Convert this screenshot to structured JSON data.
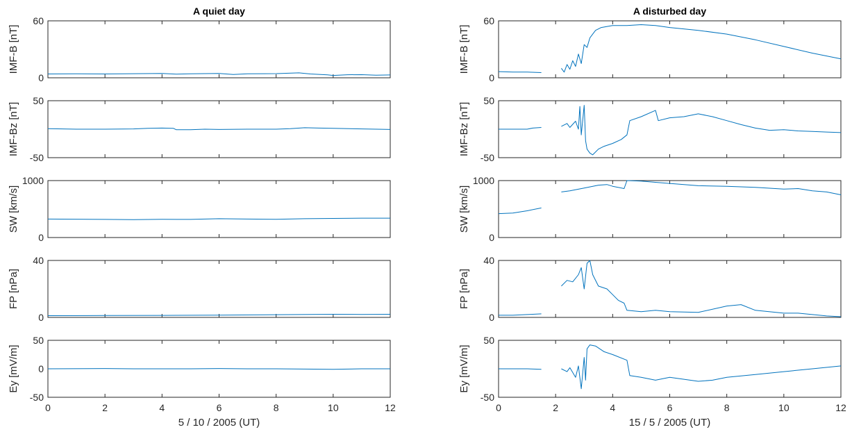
{
  "colors": {
    "line": "#0072bd",
    "axis": "#262626"
  },
  "chart_data": [
    {
      "type": "line",
      "title": "A quiet day",
      "xlabel": "5 / 10 / 2005 (UT)",
      "xlim": [
        0,
        12
      ],
      "xticks": [
        0,
        2,
        4,
        6,
        8,
        10,
        12
      ],
      "panels": [
        {
          "ylabel": "IMF-B [nT]",
          "ylim": [
            0,
            60
          ],
          "yticks": [
            0,
            60
          ],
          "segments": [
            [
              [
                0,
                4
              ],
              [
                1,
                4.2
              ],
              [
                2,
                4
              ],
              [
                3,
                4.3
              ],
              [
                4,
                4.6
              ],
              [
                4.5,
                3.8
              ],
              [
                5,
                4.2
              ],
              [
                6,
                4.5
              ],
              [
                6.5,
                3.5
              ],
              [
                7,
                4.2
              ],
              [
                8,
                4.4
              ],
              [
                8.8,
                5.2
              ],
              [
                9.2,
                4
              ],
              [
                9.8,
                3.1
              ],
              [
                10,
                2.5
              ],
              [
                10.5,
                3.2
              ],
              [
                11,
                3.3
              ],
              [
                11.5,
                2.8
              ],
              [
                12,
                3
              ]
            ]
          ]
        },
        {
          "ylabel": "IMF-Bz [nT]",
          "ylim": [
            -50,
            50
          ],
          "yticks": [
            -50,
            50
          ],
          "segments": [
            [
              [
                0,
                1
              ],
              [
                0.5,
                0.5
              ],
              [
                1,
                0
              ],
              [
                2,
                0
              ],
              [
                3,
                0.5
              ],
              [
                3.5,
                1.5
              ],
              [
                4,
                2
              ],
              [
                4.4,
                1.5
              ],
              [
                4.5,
                -1
              ],
              [
                5,
                -1
              ],
              [
                5.5,
                0
              ],
              [
                6,
                -0.5
              ],
              [
                7,
                0
              ],
              [
                8,
                0
              ],
              [
                8.5,
                1
              ],
              [
                9,
                2.5
              ],
              [
                9.5,
                2
              ],
              [
                10,
                1.5
              ],
              [
                11,
                0.5
              ],
              [
                12,
                -0.5
              ]
            ]
          ]
        },
        {
          "ylabel": "SW [km/s]",
          "ylim": [
            0,
            1000
          ],
          "yticks": [
            0,
            1000
          ],
          "segments": [
            [
              [
                0,
                325
              ],
              [
                2,
                318
              ],
              [
                3,
                315
              ],
              [
                4,
                320
              ],
              [
                5,
                318
              ],
              [
                6,
                330
              ],
              [
                7,
                325
              ],
              [
                8,
                320
              ],
              [
                9,
                330
              ],
              [
                10,
                335
              ],
              [
                11,
                340
              ],
              [
                12,
                340
              ]
            ]
          ]
        },
        {
          "ylabel": "FP [nPa]",
          "ylim": [
            0,
            40
          ],
          "yticks": [
            0,
            40
          ],
          "segments": [
            [
              [
                0,
                1.2
              ],
              [
                2,
                1.3
              ],
              [
                4,
                1.4
              ],
              [
                6,
                1.6
              ],
              [
                8,
                1.9
              ],
              [
                10,
                2.2
              ],
              [
                11,
                2.1
              ],
              [
                12,
                2.2
              ]
            ]
          ]
        },
        {
          "ylabel": "Ey [mV/m]",
          "ylim": [
            -50,
            50
          ],
          "yticks": [
            -50,
            0,
            50
          ],
          "segments": [
            [
              [
                0,
                0
              ],
              [
                2,
                0.5
              ],
              [
                3,
                0
              ],
              [
                5,
                0
              ],
              [
                6,
                0.5
              ],
              [
                7,
                0
              ],
              [
                8,
                0
              ],
              [
                9,
                -0.5
              ],
              [
                10,
                -1
              ],
              [
                11,
                0
              ],
              [
                12,
                0
              ]
            ]
          ]
        }
      ]
    },
    {
      "type": "line",
      "title": "A disturbed day",
      "xlabel": "15 /  5 / 2005 (UT)",
      "xlim": [
        0,
        12
      ],
      "xticks": [
        0,
        2,
        4,
        6,
        8,
        10,
        12
      ],
      "panels": [
        {
          "ylabel": "IMF-B [nT]",
          "ylim": [
            0,
            60
          ],
          "yticks": [
            0,
            60
          ],
          "segments": [
            [
              [
                0,
                6.5
              ],
              [
                0.5,
                6
              ],
              [
                1,
                6
              ],
              [
                1.5,
                5.5
              ]
            ],
            [
              [
                2.2,
                10
              ],
              [
                2.3,
                6
              ],
              [
                2.4,
                14
              ],
              [
                2.5,
                9
              ],
              [
                2.6,
                18
              ],
              [
                2.7,
                12
              ],
              [
                2.8,
                25
              ],
              [
                2.9,
                15
              ],
              [
                3,
                35
              ],
              [
                3.1,
                32
              ],
              [
                3.2,
                42
              ],
              [
                3.3,
                46
              ],
              [
                3.4,
                50
              ],
              [
                3.6,
                53
              ],
              [
                4,
                55
              ],
              [
                4.5,
                55
              ],
              [
                5,
                56
              ],
              [
                5.5,
                55
              ],
              [
                6,
                53
              ],
              [
                7,
                50
              ],
              [
                8,
                46
              ],
              [
                9,
                40
              ],
              [
                10,
                33
              ],
              [
                11,
                26
              ],
              [
                12,
                20
              ]
            ]
          ]
        },
        {
          "ylabel": "IMF-Bz [nT]",
          "ylim": [
            -50,
            50
          ],
          "yticks": [
            -50,
            50
          ],
          "segments": [
            [
              [
                0,
                0
              ],
              [
                0.5,
                0
              ],
              [
                1,
                0
              ],
              [
                1.2,
                2
              ],
              [
                1.5,
                3
              ]
            ],
            [
              [
                2.2,
                5
              ],
              [
                2.4,
                10
              ],
              [
                2.5,
                3
              ],
              [
                2.7,
                14
              ],
              [
                2.8,
                0
              ],
              [
                2.85,
                40
              ],
              [
                2.9,
                -10
              ],
              [
                3,
                42
              ],
              [
                3.05,
                -20
              ],
              [
                3.1,
                -35
              ],
              [
                3.2,
                -42
              ],
              [
                3.3,
                -45
              ],
              [
                3.5,
                -35
              ],
              [
                3.7,
                -30
              ],
              [
                4,
                -25
              ],
              [
                4.3,
                -18
              ],
              [
                4.5,
                -10
              ],
              [
                4.6,
                15
              ],
              [
                5,
                22
              ],
              [
                5.5,
                33
              ],
              [
                5.6,
                15
              ],
              [
                6,
                20
              ],
              [
                6.5,
                22
              ],
              [
                7,
                27
              ],
              [
                7.5,
                22
              ],
              [
                8,
                15
              ],
              [
                8.5,
                8
              ],
              [
                9,
                2
              ],
              [
                9.5,
                -2
              ],
              [
                10,
                -1
              ],
              [
                10.5,
                -3
              ],
              [
                11,
                -4
              ],
              [
                11.5,
                -5
              ],
              [
                12,
                -6
              ]
            ]
          ]
        },
        {
          "ylabel": "SW [km/s]",
          "ylim": [
            0,
            1000
          ],
          "yticks": [
            0,
            1000
          ],
          "segments": [
            [
              [
                0,
                420
              ],
              [
                0.5,
                430
              ],
              [
                1,
                470
              ],
              [
                1.5,
                520
              ]
            ],
            [
              [
                2.2,
                800
              ],
              [
                2.5,
                820
              ],
              [
                3,
                870
              ],
              [
                3.5,
                920
              ],
              [
                3.8,
                930
              ],
              [
                4,
                900
              ],
              [
                4.4,
                860
              ],
              [
                4.5,
                1000
              ],
              [
                5,
                990
              ],
              [
                5.5,
                970
              ],
              [
                6,
                950
              ],
              [
                7,
                910
              ],
              [
                8,
                900
              ],
              [
                9,
                880
              ],
              [
                10,
                850
              ],
              [
                10.5,
                860
              ],
              [
                11,
                820
              ],
              [
                11.5,
                800
              ],
              [
                12,
                750
              ]
            ]
          ]
        },
        {
          "ylabel": "FP [nPa]",
          "ylim": [
            0,
            40
          ],
          "yticks": [
            0,
            40
          ],
          "segments": [
            [
              [
                0,
                1.5
              ],
              [
                0.5,
                1.5
              ],
              [
                1,
                2
              ],
              [
                1.5,
                2.5
              ]
            ],
            [
              [
                2.2,
                22
              ],
              [
                2.4,
                26
              ],
              [
                2.6,
                25
              ],
              [
                2.8,
                30
              ],
              [
                2.9,
                35
              ],
              [
                3,
                20
              ],
              [
                3.1,
                38
              ],
              [
                3.2,
                40
              ],
              [
                3.3,
                30
              ],
              [
                3.5,
                22
              ],
              [
                3.8,
                20
              ],
              [
                4,
                16
              ],
              [
                4.2,
                12
              ],
              [
                4.4,
                10
              ],
              [
                4.5,
                5
              ],
              [
                5,
                4
              ],
              [
                5.5,
                5
              ],
              [
                6,
                4
              ],
              [
                7,
                3.5
              ],
              [
                8,
                8
              ],
              [
                8.5,
                9
              ],
              [
                9,
                5
              ],
              [
                10,
                3
              ],
              [
                10.5,
                3
              ],
              [
                11,
                2
              ],
              [
                11.5,
                1
              ],
              [
                12,
                0.5
              ]
            ]
          ]
        },
        {
          "ylabel": "Ey [mV/m]",
          "ylim": [
            -50,
            50
          ],
          "yticks": [
            -50,
            50
          ],
          "segments": [
            [
              [
                0,
                0
              ],
              [
                0.5,
                0
              ],
              [
                1,
                0
              ],
              [
                1.5,
                -1
              ]
            ],
            [
              [
                2.2,
                0
              ],
              [
                2.4,
                -5
              ],
              [
                2.5,
                2
              ],
              [
                2.7,
                -15
              ],
              [
                2.8,
                5
              ],
              [
                2.9,
                -35
              ],
              [
                3,
                20
              ],
              [
                3.05,
                -20
              ],
              [
                3.1,
                35
              ],
              [
                3.2,
                42
              ],
              [
                3.4,
                40
              ],
              [
                3.7,
                30
              ],
              [
                4,
                25
              ],
              [
                4.5,
                15
              ],
              [
                4.6,
                -12
              ],
              [
                5,
                -15
              ],
              [
                5.5,
                -20
              ],
              [
                6,
                -15
              ],
              [
                7,
                -22
              ],
              [
                7.5,
                -20
              ],
              [
                8,
                -15
              ],
              [
                9,
                -10
              ],
              [
                10,
                -5
              ],
              [
                11,
                0
              ],
              [
                12,
                5
              ]
            ]
          ]
        }
      ]
    }
  ]
}
